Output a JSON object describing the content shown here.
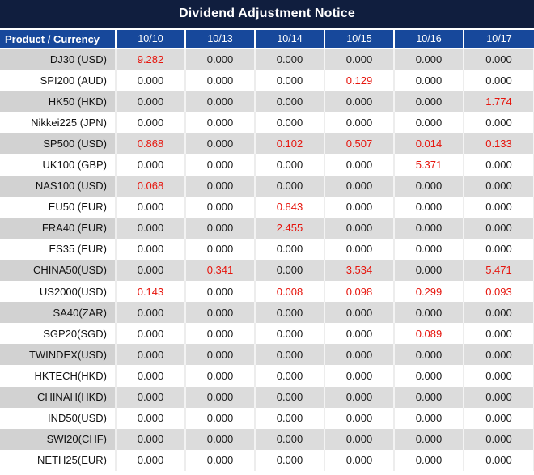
{
  "title": "Dividend Adjustment Notice",
  "colors": {
    "title_bg": "#101e3e",
    "header_bg": "#17489b",
    "row_gray": "#dcdcdc",
    "row_gray_first": "#d2d2d2",
    "row_white": "#ffffff",
    "value_red": "#e6150d",
    "text_dark": "#1c1c1c"
  },
  "chart_data": {
    "type": "table",
    "title": "Dividend Adjustment Notice",
    "product_header": "Product / Currency",
    "date_headers": [
      "10/10",
      "10/13",
      "10/14",
      "10/15",
      "10/16",
      "10/17"
    ],
    "rows": [
      {
        "product": "DJ30 (USD)",
        "values": [
          "9.282",
          "0.000",
          "0.000",
          "0.000",
          "0.000",
          "0.000"
        ],
        "red_indices": [
          0
        ]
      },
      {
        "product": "SPI200 (AUD)",
        "values": [
          "0.000",
          "0.000",
          "0.000",
          "0.129",
          "0.000",
          "0.000"
        ],
        "red_indices": [
          3
        ]
      },
      {
        "product": "HK50 (HKD)",
        "values": [
          "0.000",
          "0.000",
          "0.000",
          "0.000",
          "0.000",
          "1.774"
        ],
        "red_indices": [
          5
        ]
      },
      {
        "product": "Nikkei225 (JPN)",
        "values": [
          "0.000",
          "0.000",
          "0.000",
          "0.000",
          "0.000",
          "0.000"
        ],
        "red_indices": []
      },
      {
        "product": "SP500 (USD)",
        "values": [
          "0.868",
          "0.000",
          "0.102",
          "0.507",
          "0.014",
          "0.133"
        ],
        "red_indices": [
          0,
          2,
          3,
          4,
          5
        ]
      },
      {
        "product": "UK100 (GBP)",
        "values": [
          "0.000",
          "0.000",
          "0.000",
          "0.000",
          "5.371",
          "0.000"
        ],
        "red_indices": [
          4
        ]
      },
      {
        "product": "NAS100 (USD)",
        "values": [
          "0.068",
          "0.000",
          "0.000",
          "0.000",
          "0.000",
          "0.000"
        ],
        "red_indices": [
          0
        ]
      },
      {
        "product": "EU50 (EUR)",
        "values": [
          "0.000",
          "0.000",
          "0.843",
          "0.000",
          "0.000",
          "0.000"
        ],
        "red_indices": [
          2
        ]
      },
      {
        "product": "FRA40 (EUR)",
        "values": [
          "0.000",
          "0.000",
          "2.455",
          "0.000",
          "0.000",
          "0.000"
        ],
        "red_indices": [
          2
        ]
      },
      {
        "product": "ES35 (EUR)",
        "values": [
          "0.000",
          "0.000",
          "0.000",
          "0.000",
          "0.000",
          "0.000"
        ],
        "red_indices": []
      },
      {
        "product": "CHINA50(USD)",
        "values": [
          "0.000",
          "0.341",
          "0.000",
          "3.534",
          "0.000",
          "5.471"
        ],
        "red_indices": [
          1,
          3,
          5
        ]
      },
      {
        "product": "US2000(USD)",
        "values": [
          "0.143",
          "0.000",
          "0.008",
          "0.098",
          "0.299",
          "0.093"
        ],
        "red_indices": [
          0,
          2,
          3,
          4,
          5
        ]
      },
      {
        "product": "SA40(ZAR)",
        "values": [
          "0.000",
          "0.000",
          "0.000",
          "0.000",
          "0.000",
          "0.000"
        ],
        "red_indices": []
      },
      {
        "product": "SGP20(SGD)",
        "values": [
          "0.000",
          "0.000",
          "0.000",
          "0.000",
          "0.089",
          "0.000"
        ],
        "red_indices": [
          4
        ]
      },
      {
        "product": "TWINDEX(USD)",
        "values": [
          "0.000",
          "0.000",
          "0.000",
          "0.000",
          "0.000",
          "0.000"
        ],
        "red_indices": []
      },
      {
        "product": "HKTECH(HKD)",
        "values": [
          "0.000",
          "0.000",
          "0.000",
          "0.000",
          "0.000",
          "0.000"
        ],
        "red_indices": []
      },
      {
        "product": "CHINAH(HKD)",
        "values": [
          "0.000",
          "0.000",
          "0.000",
          "0.000",
          "0.000",
          "0.000"
        ],
        "red_indices": []
      },
      {
        "product": "IND50(USD)",
        "values": [
          "0.000",
          "0.000",
          "0.000",
          "0.000",
          "0.000",
          "0.000"
        ],
        "red_indices": []
      },
      {
        "product": "SWI20(CHF)",
        "values": [
          "0.000",
          "0.000",
          "0.000",
          "0.000",
          "0.000",
          "0.000"
        ],
        "red_indices": []
      },
      {
        "product": "NETH25(EUR)",
        "values": [
          "0.000",
          "0.000",
          "0.000",
          "0.000",
          "0.000",
          "0.000"
        ],
        "red_indices": []
      }
    ]
  }
}
